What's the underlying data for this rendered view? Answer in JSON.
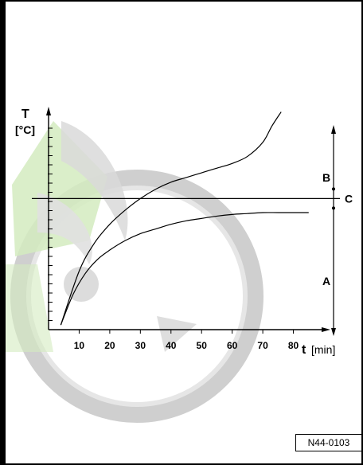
{
  "colors": {
    "watermark_grey": "#c8c8c8",
    "watermark_green": "#cde8b8",
    "line": "#000000"
  },
  "watermark": {
    "icon": "skoda-logo-watermark"
  },
  "image_label": "N44-0103",
  "chart_data": {
    "type": "line",
    "title": "",
    "ylabel": {
      "symbol": "T",
      "unit": "[°C]"
    },
    "xlabel": {
      "symbol": "t",
      "unit": "[min]"
    },
    "xticks": [
      "10",
      "20",
      "30",
      "40",
      "50",
      "60",
      "70",
      "80"
    ],
    "xlim": [
      0,
      90
    ],
    "ylim": [
      0,
      100
    ],
    "grid": false,
    "reference_line": {
      "label": "C",
      "y": 56
    },
    "range_labels": {
      "above": "B",
      "below": "A"
    },
    "series": [
      {
        "x": [
          4,
          10,
          15,
          20,
          25,
          30,
          35,
          40,
          45,
          50,
          55,
          60,
          65,
          70,
          73,
          76
        ],
        "y": [
          2,
          25,
          37,
          45,
          51,
          56,
          60,
          63,
          65,
          67,
          69,
          71,
          74,
          80,
          87,
          93
        ]
      },
      {
        "x": [
          4,
          8,
          12,
          16,
          20,
          25,
          30,
          35,
          40,
          45,
          50,
          55,
          60,
          65,
          70,
          75,
          80,
          85
        ],
        "y": [
          2,
          15,
          24,
          30,
          34,
          38,
          41,
          43,
          45,
          46.5,
          47.5,
          48.5,
          49.2,
          49.6,
          50,
          50,
          50,
          50
        ]
      }
    ]
  }
}
